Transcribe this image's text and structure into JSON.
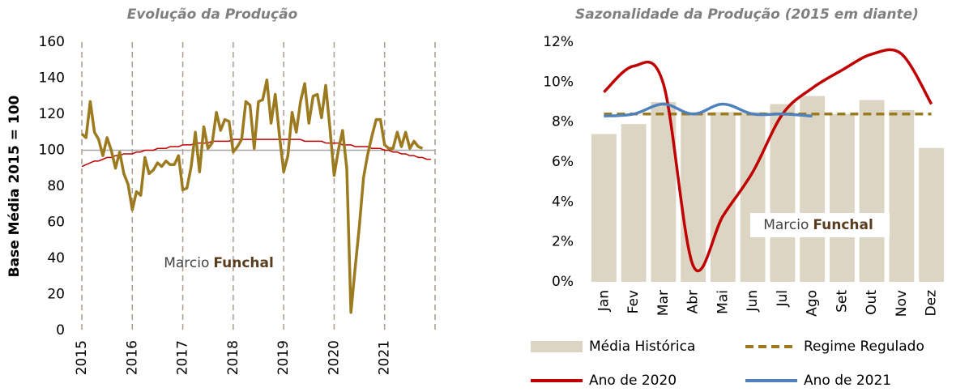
{
  "chart_data": [
    {
      "type": "line",
      "title": "Evolução da Produção",
      "y_label": "Base Média 2015 = 100",
      "watermark": [
        "Marcio",
        "Funchal"
      ],
      "x": [
        2015,
        2015.083,
        2015.167,
        2015.25,
        2015.333,
        2015.417,
        2015.5,
        2015.583,
        2015.667,
        2015.75,
        2015.833,
        2015.917,
        2016,
        2016.083,
        2016.167,
        2016.25,
        2016.333,
        2016.417,
        2016.5,
        2016.583,
        2016.667,
        2016.75,
        2016.833,
        2016.917,
        2017,
        2017.083,
        2017.167,
        2017.25,
        2017.333,
        2017.417,
        2017.5,
        2017.583,
        2017.667,
        2017.75,
        2017.833,
        2017.917,
        2018,
        2018.083,
        2018.167,
        2018.25,
        2018.333,
        2018.417,
        2018.5,
        2018.583,
        2018.667,
        2018.75,
        2018.833,
        2018.917,
        2019,
        2019.083,
        2019.167,
        2019.25,
        2019.333,
        2019.417,
        2019.5,
        2019.583,
        2019.667,
        2019.75,
        2019.833,
        2019.917,
        2020,
        2020.083,
        2020.167,
        2020.25,
        2020.333,
        2020.417,
        2020.5,
        2020.583,
        2020.667,
        2020.75,
        2020.833,
        2020.917,
        2021,
        2021.083,
        2021.167,
        2021.25,
        2021.333,
        2021.417,
        2021.5,
        2021.583,
        2021.667,
        2021.75,
        2021.833,
        2021.917
      ],
      "xlim": [
        2015,
        2022
      ],
      "xticks": [
        2015,
        2016,
        2017,
        2018,
        2019,
        2020,
        2021
      ],
      "ylim": [
        0,
        160
      ],
      "yticks": [
        0,
        20,
        40,
        60,
        80,
        100,
        120,
        140,
        160
      ],
      "reference_line": 100,
      "reference_color": "#a6a6a6",
      "grid_color": "#a89a8e",
      "series": [
        {
          "color": "#9c7a1f",
          "width": 3.5,
          "values": [
            109,
            107,
            127,
            110,
            106,
            97,
            107,
            100,
            90,
            99,
            87,
            81,
            67,
            77,
            75,
            96,
            87,
            89,
            93,
            91,
            94,
            92,
            92,
            97,
            78,
            79,
            91,
            110,
            88,
            113,
            101,
            104,
            121,
            111,
            117,
            116,
            99,
            102,
            106,
            127,
            125,
            101,
            127,
            128,
            139,
            115,
            131,
            108,
            88,
            97,
            121,
            110,
            127,
            137,
            115,
            130,
            131,
            118,
            136,
            112,
            86,
            100,
            111,
            90,
            10,
            35,
            58,
            85,
            98,
            108,
            117,
            117,
            103,
            101,
            101,
            110,
            102,
            110,
            101,
            105,
            102,
            101,
            null,
            null
          ]
        },
        {
          "color": "#c00000",
          "width": 1.5,
          "values": [
            91,
            92,
            93,
            94,
            94,
            95,
            96,
            96,
            97,
            97,
            98,
            98,
            98,
            99,
            99,
            100,
            100,
            100,
            101,
            101,
            101,
            102,
            102,
            102,
            103,
            103,
            103,
            104,
            104,
            104,
            104,
            105,
            105,
            105,
            105,
            105,
            106,
            106,
            106,
            106,
            106,
            106,
            106,
            106,
            106,
            106,
            106,
            106,
            106,
            106,
            106,
            106,
            106,
            105,
            105,
            105,
            105,
            105,
            104,
            104,
            104,
            104,
            103,
            103,
            103,
            102,
            102,
            102,
            102,
            101,
            101,
            101,
            100,
            100,
            99,
            99,
            98,
            98,
            97,
            97,
            96,
            96,
            95,
            95
          ]
        }
      ]
    },
    {
      "type": "bar",
      "title": "Sazonalidade da Produção (2015 em diante)",
      "watermark": [
        "Marcio",
        "Funchal"
      ],
      "categories": [
        "Jan",
        "Fev",
        "Mar",
        "Abr",
        "Mai",
        "Jun",
        "Jul",
        "Ago",
        "Set",
        "Out",
        "Nov",
        "Dez"
      ],
      "ylim": [
        0,
        12
      ],
      "yticks": [
        {
          "value": 0,
          "label": "0%"
        },
        {
          "value": 2,
          "label": "2%"
        },
        {
          "value": 4,
          "label": "4%"
        },
        {
          "value": 6,
          "label": "6%"
        },
        {
          "value": 8,
          "label": "8%"
        },
        {
          "value": 10,
          "label": "10%"
        },
        {
          "value": 12,
          "label": "12%"
        }
      ],
      "series": [
        {
          "name": "Média Histórica",
          "type": "bar",
          "color": "#ddd5c4",
          "values": [
            7.4,
            7.9,
            9.0,
            8.5,
            8.5,
            8.5,
            8.9,
            9.3,
            8.4,
            9.1,
            8.6,
            6.7
          ]
        },
        {
          "name": "Regime Regulado",
          "type": "line",
          "dashed": true,
          "color": "#9c7a1f",
          "values": [
            8.4,
            8.4,
            8.4,
            8.4,
            8.4,
            8.4,
            8.4,
            8.4,
            8.4,
            8.4,
            8.4,
            8.4
          ]
        },
        {
          "name": "Ano de 2020",
          "type": "line",
          "color": "#c00000",
          "values": [
            9.5,
            10.8,
            9.9,
            0.8,
            3.3,
            5.5,
            8.4,
            9.7,
            10.6,
            11.4,
            11.4,
            8.9
          ]
        },
        {
          "name": "Ano de 2021",
          "type": "line",
          "color": "#4f81bd",
          "values": [
            8.3,
            8.4,
            8.9,
            8.4,
            8.9,
            8.4,
            8.4,
            8.3,
            null,
            null,
            null,
            null
          ]
        }
      ]
    }
  ]
}
